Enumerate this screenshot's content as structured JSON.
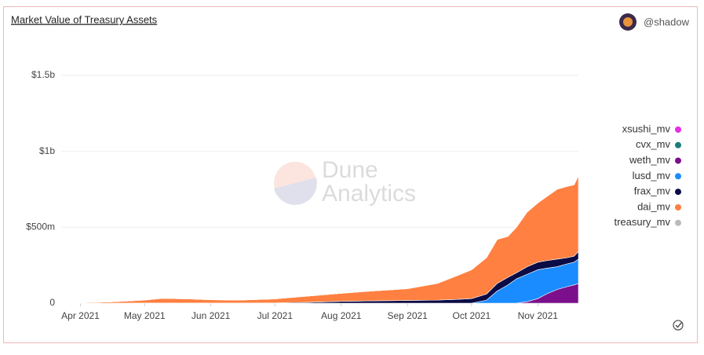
{
  "header": {
    "title": "Market Value of Treasury Assets",
    "user": "@shadow",
    "watermark": [
      "Dune",
      "Analytics"
    ]
  },
  "chart_data": {
    "type": "stacked_area",
    "x": [
      "2021-03-23",
      "2021-04-01",
      "2021-04-15",
      "2021-05-01",
      "2021-05-08",
      "2021-05-15",
      "2021-05-22",
      "2021-06-01",
      "2021-06-15",
      "2021-07-01",
      "2021-07-15",
      "2021-08-01",
      "2021-08-15",
      "2021-09-01",
      "2021-09-15",
      "2021-09-24",
      "2021-10-01",
      "2021-10-08",
      "2021-10-13",
      "2021-10-18",
      "2021-10-22",
      "2021-10-27",
      "2021-11-01",
      "2021-11-05",
      "2021-11-10",
      "2021-11-15",
      "2021-11-18",
      "2021-11-20"
    ],
    "series": [
      {
        "name": "xsushi_mv",
        "color": "#e62ee6",
        "values": [
          0,
          0,
          0,
          0,
          0,
          0,
          0,
          0,
          0,
          0,
          0,
          0,
          0,
          0,
          0,
          0,
          0,
          0,
          0,
          0,
          0,
          0,
          0,
          0,
          0,
          0,
          0,
          0
        ]
      },
      {
        "name": "cvx_mv",
        "color": "#1a7f78",
        "values": [
          0,
          0,
          0,
          0,
          0,
          0,
          0,
          0,
          0,
          0,
          0,
          0,
          0,
          0,
          0,
          0,
          0,
          0,
          0,
          0,
          0,
          0,
          0,
          0,
          0,
          0,
          0,
          0
        ]
      },
      {
        "name": "weth_mv",
        "color": "#7b0f8c",
        "values": [
          0,
          0,
          0,
          0,
          0,
          0,
          0,
          0,
          0,
          0,
          0,
          0,
          0,
          0,
          0,
          0,
          0,
          0,
          0,
          0,
          0,
          10,
          30,
          60,
          90,
          110,
          120,
          130
        ]
      },
      {
        "name": "lusd_mv",
        "color": "#1a8cff",
        "values": [
          0,
          0,
          0,
          0,
          0,
          0,
          0,
          0,
          0,
          0,
          0,
          0,
          0,
          0,
          0,
          0,
          0,
          20,
          80,
          120,
          160,
          180,
          190,
          170,
          150,
          150,
          150,
          160
        ]
      },
      {
        "name": "frax_mv",
        "color": "#0b0b45",
        "values": [
          0,
          0,
          0,
          1,
          1,
          1,
          1,
          1,
          1,
          2,
          5,
          12,
          15,
          18,
          20,
          25,
          30,
          40,
          50,
          50,
          40,
          50,
          50,
          50,
          50,
          40,
          40,
          50
        ]
      },
      {
        "name": "dai_mv",
        "color": "#ff8040",
        "values": [
          2,
          3,
          8,
          19,
          29,
          29,
          27,
          21,
          19,
          26,
          40,
          53,
          65,
          77,
          110,
          155,
          190,
          240,
          290,
          270,
          300,
          360,
          390,
          420,
          460,
          470,
          470,
          500
        ]
      },
      {
        "name": "treasury_mv",
        "color": "#bbbbbb",
        "values": [
          0,
          0,
          0,
          0,
          0,
          0,
          0,
          0,
          0,
          0,
          0,
          0,
          0,
          0,
          0,
          0,
          0,
          0,
          0,
          0,
          0,
          0,
          0,
          0,
          0,
          0,
          0,
          0
        ]
      }
    ],
    "xlim": [
      "2021-03-23",
      "2021-11-20"
    ],
    "xticks": [
      {
        "value": "2021-04-01",
        "label": "Apr 2021"
      },
      {
        "value": "2021-05-01",
        "label": "May 2021"
      },
      {
        "value": "2021-06-01",
        "label": "Jun 2021"
      },
      {
        "value": "2021-07-01",
        "label": "Jul 2021"
      },
      {
        "value": "2021-08-01",
        "label": "Aug 2021"
      },
      {
        "value": "2021-09-01",
        "label": "Sep 2021"
      },
      {
        "value": "2021-10-01",
        "label": "Oct 2021"
      },
      {
        "value": "2021-11-01",
        "label": "Nov 2021"
      }
    ],
    "ylim": [
      0,
      1500
    ],
    "yticks": [
      0,
      {
        "value": 500,
        "label": "$500m"
      },
      {
        "value": 1000,
        "label": "$1b"
      },
      {
        "value": 1500,
        "label": "$1.5b"
      }
    ],
    "grid": true,
    "legend": "right"
  }
}
